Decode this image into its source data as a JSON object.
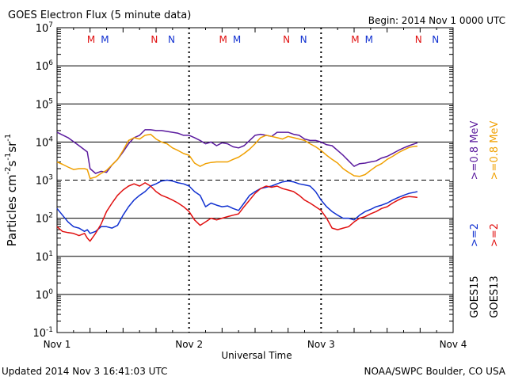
{
  "header": {
    "title": "GOES Electron Flux (5 minute data)",
    "begin": "Begin: 2014 Nov 1 0000 UTC"
  },
  "footer": {
    "updated": "Updated 2014 Nov  3 16:41:03 UTC",
    "credit": "NOAA/SWPC Boulder, CO USA"
  },
  "colors": {
    "goes15_high": "#5a1a9e",
    "goes13_high": "#f0a000",
    "goes15_low": "#1030d0",
    "goes13_low": "#e01010",
    "marker_m_red": "#e01010",
    "marker_m_blue": "#1030d0"
  },
  "chart_data": {
    "type": "line",
    "xlabel": "Universal Time",
    "ylabel": "Particles cm-2s-1sr-1",
    "y_scale": "log",
    "ylim": [
      0.1,
      10000000
    ],
    "y_ticks": [
      {
        "value": 0.1,
        "base": "10",
        "exp": "-1"
      },
      {
        "value": 1,
        "base": "10",
        "exp": "0"
      },
      {
        "value": 10,
        "base": "10",
        "exp": "1"
      },
      {
        "value": 100,
        "base": "10",
        "exp": "2"
      },
      {
        "value": 1000,
        "base": "10",
        "exp": "3"
      },
      {
        "value": 10000,
        "base": "10",
        "exp": "4"
      },
      {
        "value": 100000,
        "base": "10",
        "exp": "5"
      },
      {
        "value": 1000000,
        "base": "10",
        "exp": "6"
      },
      {
        "value": 10000000,
        "base": "10",
        "exp": "7"
      }
    ],
    "x_ticks": [
      "Nov 1",
      "Nov 2",
      "Nov 3",
      "Nov 4"
    ],
    "xlim": [
      0,
      72
    ],
    "x_unit": "hours since 2014 Nov 1 0000 UTC",
    "alert_threshold": 1000,
    "day_markers": [
      {
        "label": "M",
        "color": "#e01010",
        "hour": 6.2
      },
      {
        "label": "M",
        "color": "#1030d0",
        "hour": 8.7
      },
      {
        "label": "N",
        "color": "#e01010",
        "hour": 17.7
      },
      {
        "label": "N",
        "color": "#1030d0",
        "hour": 20.8
      },
      {
        "label": "M",
        "color": "#e01010",
        "hour": 30.2
      },
      {
        "label": "M",
        "color": "#1030d0",
        "hour": 32.7
      },
      {
        "label": "N",
        "color": "#e01010",
        "hour": 41.7
      },
      {
        "label": "N",
        "color": "#1030d0",
        "hour": 44.8
      },
      {
        "label": "M",
        "color": "#e01010",
        "hour": 54.2
      },
      {
        "label": "M",
        "color": "#1030d0",
        "hour": 56.7
      },
      {
        "label": "N",
        "color": "#e01010",
        "hour": 65.7
      },
      {
        "label": "N",
        "color": "#1030d0",
        "hour": 68.8
      }
    ],
    "legend": {
      "goes13_high": ">=0.8  MeV",
      "goes15_high": ">=0.8  MeV",
      "goes13_low": ">=2",
      "goes15_low": ">=2",
      "sat_goes15": "GOES15",
      "sat_goes13": "GOES13"
    },
    "series": [
      {
        "key": "goes15_high",
        "color": "#5a1a9e",
        "x": [
          0,
          2,
          4,
          5.5,
          6,
          7,
          8,
          9,
          10,
          11,
          12,
          13,
          14,
          15,
          16,
          17,
          18,
          19,
          20,
          21,
          22,
          23,
          24,
          25,
          26,
          27,
          28,
          29,
          30,
          31,
          32,
          33,
          34,
          35,
          36,
          37,
          38,
          39,
          40,
          41,
          42,
          43,
          44,
          45,
          46,
          47,
          48,
          49,
          50,
          51,
          52,
          53,
          54,
          55,
          56,
          57,
          58,
          59,
          60,
          61,
          62,
          63,
          64,
          65,
          65.5
        ],
        "y": [
          18000,
          13000,
          8000,
          5500,
          2000,
          1500,
          1700,
          1600,
          2500,
          3500,
          5500,
          9000,
          13000,
          15000,
          21000,
          21000,
          20000,
          20000,
          19000,
          18000,
          17000,
          15000,
          15000,
          13000,
          11000,
          9000,
          10000,
          8000,
          9500,
          9000,
          7500,
          7000,
          8000,
          11000,
          15000,
          16000,
          15000,
          14000,
          18000,
          18000,
          18000,
          16000,
          15000,
          12000,
          11000,
          11000,
          10000,
          8500,
          8000,
          6000,
          4500,
          3200,
          2300,
          2700,
          2800,
          3000,
          3200,
          3800,
          4200,
          5000,
          6000,
          7000,
          8000,
          9000,
          9500
        ]
      },
      {
        "key": "goes13_high",
        "color": "#f0a000",
        "x": [
          0,
          1,
          2,
          3,
          4,
          5,
          5.5,
          6,
          7,
          8,
          9,
          10,
          11,
          12,
          13,
          14,
          15,
          16,
          17,
          18,
          19,
          20,
          21,
          22,
          23,
          24,
          25,
          26,
          27,
          28,
          29,
          30,
          31,
          32,
          33,
          34,
          35,
          36,
          37,
          38,
          39,
          40,
          41,
          42,
          43,
          44,
          45,
          46,
          47,
          48,
          49,
          50,
          51,
          52,
          53,
          54,
          55,
          56,
          57,
          58,
          59,
          60,
          61,
          62,
          63,
          64,
          65,
          65.5
        ],
        "y": [
          3000,
          2600,
          2200,
          1900,
          2000,
          2000,
          1900,
          1100,
          1200,
          1500,
          1800,
          2500,
          3500,
          6000,
          11000,
          13000,
          12000,
          15000,
          16000,
          12000,
          10000,
          9000,
          7000,
          6000,
          5000,
          4500,
          2800,
          2300,
          2700,
          2900,
          3000,
          3000,
          3000,
          3500,
          4000,
          5000,
          6500,
          9000,
          13000,
          15000,
          14000,
          13000,
          12000,
          14000,
          13000,
          12000,
          11000,
          9000,
          7500,
          6000,
          4500,
          3500,
          2800,
          2000,
          1600,
          1300,
          1250,
          1400,
          1800,
          2300,
          2700,
          3500,
          4200,
          5200,
          6200,
          7200,
          7700,
          7800
        ]
      },
      {
        "key": "goes15_low",
        "color": "#1030d0",
        "x": [
          0,
          1,
          2,
          3,
          4,
          5,
          5.5,
          6,
          7,
          8,
          9,
          10,
          11,
          12,
          13,
          14,
          15,
          16,
          17,
          18,
          19,
          20,
          21,
          22,
          23,
          24,
          25,
          26,
          27,
          28,
          29,
          30,
          31,
          32,
          33,
          34,
          35,
          36,
          37,
          38,
          39,
          40,
          41,
          42,
          43,
          44,
          45,
          46,
          47,
          48,
          49,
          50,
          51,
          52,
          53,
          54,
          55,
          56,
          57,
          58,
          59,
          60,
          61,
          62,
          63,
          64,
          65,
          65.5
        ],
        "y": [
          180,
          120,
          80,
          60,
          55,
          45,
          50,
          40,
          45,
          60,
          60,
          55,
          65,
          120,
          200,
          300,
          400,
          500,
          700,
          800,
          950,
          1000,
          950,
          850,
          800,
          700,
          500,
          400,
          200,
          250,
          220,
          200,
          210,
          180,
          160,
          250,
          400,
          500,
          600,
          650,
          700,
          800,
          900,
          950,
          900,
          800,
          750,
          700,
          500,
          300,
          200,
          150,
          120,
          100,
          100,
          90,
          120,
          150,
          170,
          200,
          220,
          250,
          300,
          350,
          400,
          450,
          480,
          500
        ]
      },
      {
        "key": "goes13_low",
        "color": "#e01010",
        "x": [
          0,
          1,
          2,
          3,
          4,
          5,
          5.5,
          6,
          7,
          8,
          9,
          10,
          11,
          12,
          13,
          14,
          15,
          16,
          17,
          18,
          19,
          20,
          21,
          22,
          23,
          24,
          25,
          26,
          27,
          28,
          29,
          30,
          31,
          32,
          33,
          34,
          35,
          36,
          37,
          38,
          39,
          40,
          41,
          42,
          43,
          44,
          45,
          46,
          47,
          48,
          49,
          50,
          51,
          52,
          53,
          54,
          55,
          56,
          57,
          58,
          59,
          60,
          61,
          62,
          63,
          64,
          65,
          65.5
        ],
        "y": [
          60,
          45,
          42,
          40,
          35,
          40,
          30,
          25,
          40,
          70,
          150,
          250,
          400,
          550,
          700,
          800,
          700,
          850,
          700,
          500,
          400,
          350,
          300,
          250,
          200,
          150,
          90,
          65,
          80,
          100,
          90,
          100,
          110,
          120,
          130,
          200,
          300,
          450,
          600,
          700,
          650,
          700,
          600,
          550,
          500,
          400,
          300,
          250,
          200,
          160,
          100,
          55,
          50,
          55,
          60,
          80,
          100,
          110,
          130,
          150,
          180,
          200,
          250,
          300,
          350,
          370,
          360,
          350
        ]
      }
    ]
  }
}
